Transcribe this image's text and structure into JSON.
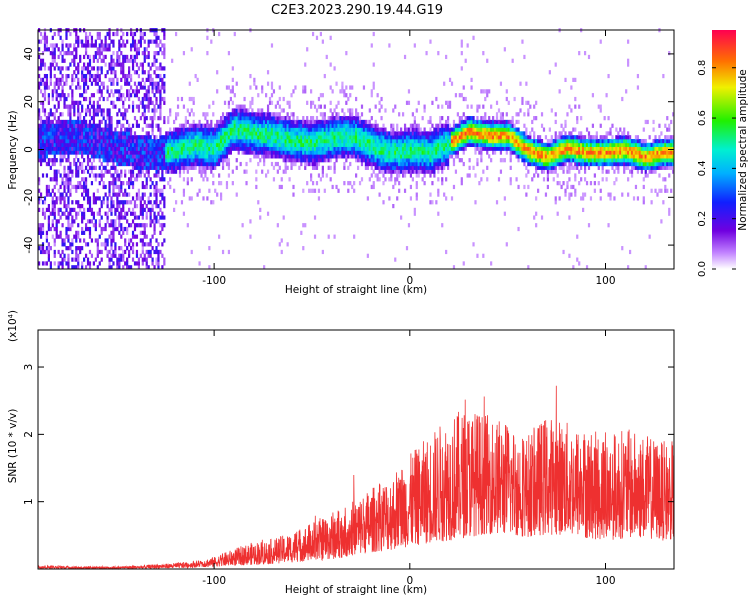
{
  "title": "C2E3.2023.290.19.44.G19",
  "chart_data": [
    {
      "type": "heatmap",
      "name": "spectrogram",
      "xlabel": "Height of straight line (km)",
      "ylabel": "Frequency (Hz)",
      "xlim": [
        -190,
        135
      ],
      "ylim": [
        -50,
        50
      ],
      "xticks": [
        -100,
        0,
        100
      ],
      "yticks": [
        -40,
        -20,
        0,
        20,
        40
      ],
      "xtick_labels": [
        "-100",
        "0",
        "100"
      ],
      "ytick_labels": [
        "-40",
        "-20",
        "0",
        "20",
        "40"
      ],
      "colorbar": {
        "label": "Normalized spectral amplitude",
        "range": [
          0.0,
          0.95
        ],
        "ticks": [
          0.0,
          0.2,
          0.4,
          0.6,
          0.8
        ],
        "tick_labels": [
          "0.0",
          "0.2",
          "0.4",
          "0.6",
          "0.8"
        ]
      },
      "ridge": {
        "x": [
          -190,
          -170,
          -150,
          -130,
          -110,
          -100,
          -90,
          -80,
          -70,
          -60,
          -50,
          -40,
          -30,
          -20,
          -10,
          0,
          10,
          20,
          30,
          40,
          50,
          60,
          70,
          80,
          90,
          100,
          110,
          120,
          130
        ],
        "y": [
          3,
          5,
          0,
          -3,
          1,
          0,
          8,
          6,
          5,
          3,
          2,
          4,
          5,
          1,
          -2,
          -1,
          -2,
          2,
          7,
          5,
          5,
          -1,
          -4,
          0,
          -2,
          -2,
          -1,
          -4,
          -2
        ]
      },
      "noise_region_x": [
        -190,
        -125
      ]
    },
    {
      "type": "line",
      "name": "snr",
      "xlabel": "Height of straight line (km)",
      "ylabel": "SNR (10 * v/v)",
      "y_multiplier": "(x10⁴)",
      "xlim": [
        -190,
        135
      ],
      "ylim": [
        0,
        3.55
      ],
      "xticks": [
        -100,
        0,
        100
      ],
      "yticks": [
        1,
        2,
        3
      ],
      "xtick_labels": [
        "-100",
        "0",
        "100"
      ],
      "ytick_labels": [
        "1",
        "2",
        "3"
      ],
      "color": "#ee3030",
      "series": [
        {
          "x": [
            -190,
            -180,
            -170,
            -160,
            -150,
            -140,
            -130,
            -120,
            -110,
            -100,
            -90,
            -80,
            -70,
            -60,
            -50,
            -40,
            -30,
            -20,
            -10,
            0,
            10,
            20,
            30,
            40,
            50,
            60,
            70,
            80,
            90,
            100,
            110,
            120,
            130,
            135
          ],
          "y": [
            0.03,
            0.02,
            0.02,
            0.02,
            0.02,
            0.02,
            0.03,
            0.04,
            0.06,
            0.1,
            0.14,
            0.18,
            0.22,
            0.28,
            0.35,
            0.4,
            0.55,
            0.7,
            0.8,
            0.95,
            1.1,
            1.2,
            1.35,
            1.5,
            1.45,
            1.35,
            1.45,
            1.45,
            1.3,
            1.2,
            1.3,
            1.3,
            1.2,
            1.25
          ],
          "envelope": [
            0.06,
            0.05,
            0.04,
            0.04,
            0.04,
            0.05,
            0.07,
            0.09,
            0.12,
            0.18,
            0.3,
            0.4,
            0.45,
            0.55,
            0.7,
            0.85,
            1.0,
            1.2,
            1.4,
            1.7,
            2.0,
            2.3,
            2.4,
            2.3,
            2.2,
            2.0,
            2.3,
            2.2,
            2.1,
            2.0,
            2.1,
            2.0,
            1.9,
            1.9
          ]
        }
      ]
    }
  ]
}
